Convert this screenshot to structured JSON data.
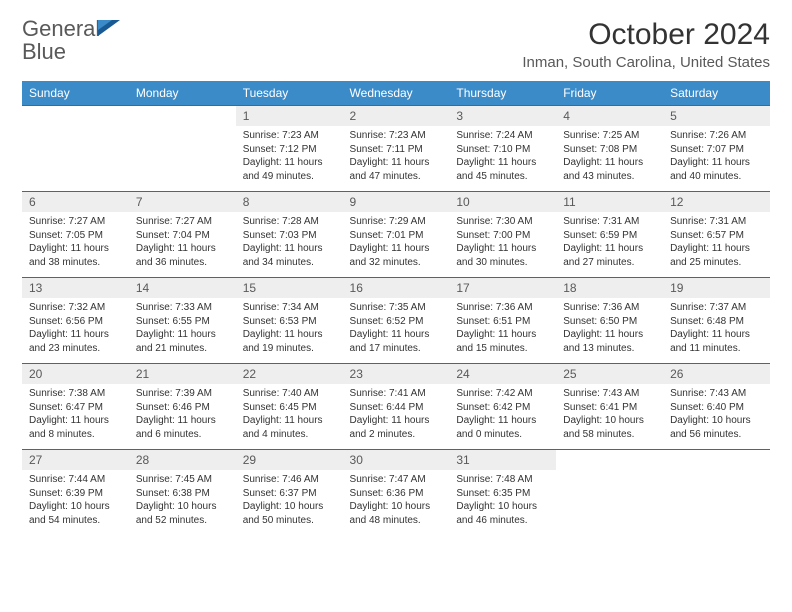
{
  "logo": {
    "text1": "General",
    "text2": "Blue"
  },
  "title": "October 2024",
  "location": "Inman, South Carolina, United States",
  "header_color": "#3b8bc9",
  "daynum_bg": "#eeeeee",
  "row_border": "#2f6fa0",
  "daynames": [
    "Sunday",
    "Monday",
    "Tuesday",
    "Wednesday",
    "Thursday",
    "Friday",
    "Saturday"
  ],
  "weeks": [
    [
      null,
      null,
      {
        "n": "1",
        "sr": "7:23 AM",
        "ss": "7:12 PM",
        "dl": "11 hours and 49 minutes."
      },
      {
        "n": "2",
        "sr": "7:23 AM",
        "ss": "7:11 PM",
        "dl": "11 hours and 47 minutes."
      },
      {
        "n": "3",
        "sr": "7:24 AM",
        "ss": "7:10 PM",
        "dl": "11 hours and 45 minutes."
      },
      {
        "n": "4",
        "sr": "7:25 AM",
        "ss": "7:08 PM",
        "dl": "11 hours and 43 minutes."
      },
      {
        "n": "5",
        "sr": "7:26 AM",
        "ss": "7:07 PM",
        "dl": "11 hours and 40 minutes."
      }
    ],
    [
      {
        "n": "6",
        "sr": "7:27 AM",
        "ss": "7:05 PM",
        "dl": "11 hours and 38 minutes."
      },
      {
        "n": "7",
        "sr": "7:27 AM",
        "ss": "7:04 PM",
        "dl": "11 hours and 36 minutes."
      },
      {
        "n": "8",
        "sr": "7:28 AM",
        "ss": "7:03 PM",
        "dl": "11 hours and 34 minutes."
      },
      {
        "n": "9",
        "sr": "7:29 AM",
        "ss": "7:01 PM",
        "dl": "11 hours and 32 minutes."
      },
      {
        "n": "10",
        "sr": "7:30 AM",
        "ss": "7:00 PM",
        "dl": "11 hours and 30 minutes."
      },
      {
        "n": "11",
        "sr": "7:31 AM",
        "ss": "6:59 PM",
        "dl": "11 hours and 27 minutes."
      },
      {
        "n": "12",
        "sr": "7:31 AM",
        "ss": "6:57 PM",
        "dl": "11 hours and 25 minutes."
      }
    ],
    [
      {
        "n": "13",
        "sr": "7:32 AM",
        "ss": "6:56 PM",
        "dl": "11 hours and 23 minutes."
      },
      {
        "n": "14",
        "sr": "7:33 AM",
        "ss": "6:55 PM",
        "dl": "11 hours and 21 minutes."
      },
      {
        "n": "15",
        "sr": "7:34 AM",
        "ss": "6:53 PM",
        "dl": "11 hours and 19 minutes."
      },
      {
        "n": "16",
        "sr": "7:35 AM",
        "ss": "6:52 PM",
        "dl": "11 hours and 17 minutes."
      },
      {
        "n": "17",
        "sr": "7:36 AM",
        "ss": "6:51 PM",
        "dl": "11 hours and 15 minutes."
      },
      {
        "n": "18",
        "sr": "7:36 AM",
        "ss": "6:50 PM",
        "dl": "11 hours and 13 minutes."
      },
      {
        "n": "19",
        "sr": "7:37 AM",
        "ss": "6:48 PM",
        "dl": "11 hours and 11 minutes."
      }
    ],
    [
      {
        "n": "20",
        "sr": "7:38 AM",
        "ss": "6:47 PM",
        "dl": "11 hours and 8 minutes."
      },
      {
        "n": "21",
        "sr": "7:39 AM",
        "ss": "6:46 PM",
        "dl": "11 hours and 6 minutes."
      },
      {
        "n": "22",
        "sr": "7:40 AM",
        "ss": "6:45 PM",
        "dl": "11 hours and 4 minutes."
      },
      {
        "n": "23",
        "sr": "7:41 AM",
        "ss": "6:44 PM",
        "dl": "11 hours and 2 minutes."
      },
      {
        "n": "24",
        "sr": "7:42 AM",
        "ss": "6:42 PM",
        "dl": "11 hours and 0 minutes."
      },
      {
        "n": "25",
        "sr": "7:43 AM",
        "ss": "6:41 PM",
        "dl": "10 hours and 58 minutes."
      },
      {
        "n": "26",
        "sr": "7:43 AM",
        "ss": "6:40 PM",
        "dl": "10 hours and 56 minutes."
      }
    ],
    [
      {
        "n": "27",
        "sr": "7:44 AM",
        "ss": "6:39 PM",
        "dl": "10 hours and 54 minutes."
      },
      {
        "n": "28",
        "sr": "7:45 AM",
        "ss": "6:38 PM",
        "dl": "10 hours and 52 minutes."
      },
      {
        "n": "29",
        "sr": "7:46 AM",
        "ss": "6:37 PM",
        "dl": "10 hours and 50 minutes."
      },
      {
        "n": "30",
        "sr": "7:47 AM",
        "ss": "6:36 PM",
        "dl": "10 hours and 48 minutes."
      },
      {
        "n": "31",
        "sr": "7:48 AM",
        "ss": "6:35 PM",
        "dl": "10 hours and 46 minutes."
      },
      null,
      null
    ]
  ],
  "labels": {
    "sunrise": "Sunrise:",
    "sunset": "Sunset:",
    "daylight": "Daylight:"
  }
}
